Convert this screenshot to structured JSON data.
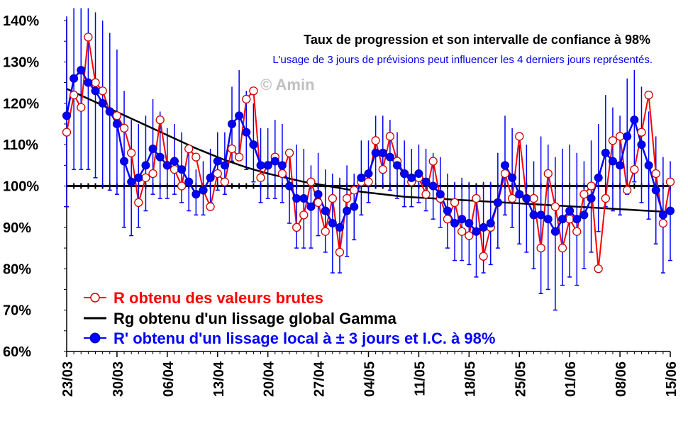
{
  "chart_data": {
    "type": "line",
    "title": "Taux de progression et son intervalle de confiance à 98%",
    "subtitle": "L'usage de 3 jours de prévisions peut influencer les 4 derniers jours représentés.",
    "watermark": "© Amin",
    "y_ticks": [
      "140%",
      "130%",
      "120%",
      "110%",
      "100%",
      "90%",
      "80%",
      "70%",
      "60%"
    ],
    "ylim": [
      60,
      140
    ],
    "x_ticks": [
      "23/03",
      "30/03",
      "06/04",
      "13/04",
      "20/04",
      "27/04",
      "04/05",
      "11/05",
      "18/05",
      "25/05",
      "01/06",
      "08/06",
      "15/06"
    ],
    "xlim": [
      0,
      84
    ],
    "reference_line": 100,
    "series": [
      {
        "name": "R obtenu des valeurs brutes",
        "color": "#ff0000",
        "marker": "open-circle",
        "values": [
          113,
          122,
          119,
          136,
          125,
          123,
          118,
          117,
          114,
          108,
          96,
          102,
          103,
          116,
          105,
          104,
          100,
          109,
          107,
          99,
          95,
          103,
          101,
          109,
          107,
          121,
          123,
          102,
          105,
          107,
          103,
          108,
          90,
          93,
          101,
          96,
          89,
          97,
          84,
          97,
          99,
          101,
          101,
          111,
          104,
          112,
          106,
          103,
          101,
          102,
          98,
          106,
          97,
          92,
          96,
          89,
          88,
          97,
          83,
          90,
          96,
          103,
          97,
          112,
          97,
          97,
          85,
          103,
          95,
          85,
          92,
          89,
          98,
          100,
          80,
          97,
          111,
          112,
          99,
          104,
          113,
          122,
          103,
          91,
          101
        ]
      },
      {
        "name": "Rg obtenu d'un lissage global Gamma",
        "color": "#000000",
        "marker": "none",
        "values": [
          123.5,
          122.7,
          121.9,
          121.1,
          120.3,
          119.5,
          118.7,
          117.9,
          117.1,
          116.3,
          115.5,
          114.7,
          113.9,
          113.1,
          112.3,
          111.5,
          110.7,
          109.9,
          109.1,
          108.4,
          107.7,
          107.0,
          106.3,
          105.7,
          105.1,
          104.5,
          104.0,
          103.5,
          103.0,
          102.6,
          102.2,
          101.8,
          101.4,
          101.0,
          100.7,
          100.4,
          100.1,
          99.8,
          99.5,
          99.2,
          98.9,
          98.6,
          98.4,
          98.2,
          98.0,
          97.8,
          97.6,
          97.4,
          97.3,
          97.2,
          97.1,
          97.0,
          96.9,
          96.8,
          96.7,
          96.6,
          96.5,
          96.4,
          96.3,
          96.2,
          96.1,
          96.0,
          95.9,
          95.8,
          95.7,
          95.6,
          95.5,
          95.4,
          95.3,
          95.2,
          95.1,
          95.0,
          94.9,
          94.8,
          94.7,
          94.6,
          94.5,
          94.4,
          94.3,
          94.2,
          94.1,
          94.0,
          93.9,
          93.8,
          93.7
        ]
      },
      {
        "name": "R' obtenu d'un lissage local à ± 3 jours et I.C. à 98%",
        "color": "#0000ff",
        "marker": "filled-circle",
        "values": [
          117,
          126,
          128,
          125,
          123,
          120,
          118,
          115,
          106,
          101,
          102,
          105,
          109,
          107,
          105,
          106,
          104,
          101,
          98,
          99,
          102,
          106,
          105,
          115,
          117,
          113,
          110,
          105,
          105,
          106,
          105,
          100,
          97,
          97,
          95,
          98,
          94,
          91,
          90,
          94,
          95,
          102,
          103,
          108,
          108,
          107,
          105,
          103,
          102,
          103,
          101,
          100,
          98,
          94,
          91,
          92,
          91,
          89,
          90,
          91,
          96,
          105,
          102,
          98,
          97,
          93,
          93,
          92,
          89,
          92,
          94,
          92,
          93,
          97,
          102,
          108,
          106,
          105,
          112,
          116,
          110,
          105,
          99,
          93,
          94
        ],
        "ci_low": [
          95,
          104,
          104,
          104,
          102,
          100,
          99,
          98,
          90,
          88,
          90,
          94,
          98,
          97,
          97,
          98,
          96,
          94,
          93,
          93,
          96,
          99,
          98,
          106,
          107,
          104,
          101,
          96,
          97,
          97,
          96,
          91,
          85,
          85,
          85,
          88,
          84,
          79,
          79,
          83,
          87,
          93,
          96,
          100,
          100,
          99,
          97,
          95,
          95,
          96,
          94,
          92,
          90,
          85,
          82,
          82,
          81,
          78,
          79,
          81,
          85,
          93,
          90,
          86,
          84,
          80,
          74,
          75,
          70,
          76,
          78,
          76,
          80,
          84,
          89,
          95,
          94,
          93,
          98,
          101,
          96,
          92,
          86,
          79,
          82
        ],
        "ci_high": [
          141,
          145,
          148,
          147,
          142,
          140,
          137,
          133,
          123,
          116,
          115,
          117,
          121,
          118,
          114,
          115,
          113,
          109,
          104,
          106,
          109,
          113,
          113,
          124,
          128,
          123,
          120,
          114,
          114,
          116,
          115,
          109,
          110,
          109,
          105,
          108,
          104,
          103,
          102,
          105,
          103,
          111,
          111,
          117,
          117,
          116,
          113,
          111,
          109,
          110,
          109,
          108,
          107,
          103,
          101,
          102,
          101,
          100,
          101,
          101,
          108,
          117,
          114,
          110,
          110,
          106,
          112,
          110,
          107,
          109,
          110,
          108,
          106,
          111,
          115,
          122,
          119,
          117,
          126,
          128,
          124,
          118,
          112,
          107,
          106
        ]
      }
    ]
  }
}
